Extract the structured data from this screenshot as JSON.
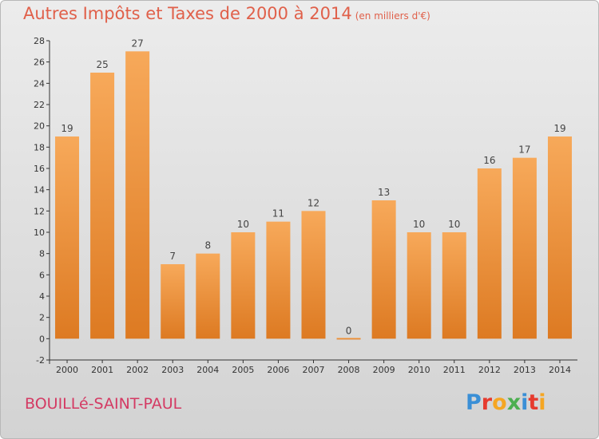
{
  "title": "Autres Impôts et Taxes de 2000 à 2014",
  "subtitle": "(en milliers d'€)",
  "commune": "BOUILLé-SAINT-PAUL",
  "logo": {
    "letters": [
      "P",
      "r",
      "o",
      "x",
      "i",
      "t",
      "i"
    ],
    "colors": [
      "#3a8fd6",
      "#e63b2e",
      "#f5a623",
      "#4caf50",
      "#3a8fd6",
      "#e63b2e",
      "#f5a623"
    ]
  },
  "colors": {
    "bar_light": "#f7a95a",
    "bar_dark": "#dd7a22",
    "title": "#e0604a",
    "commune": "#d43a63"
  },
  "chart_data": {
    "type": "bar",
    "categories": [
      "2000",
      "2001",
      "2002",
      "2003",
      "2004",
      "2005",
      "2006",
      "2007",
      "2008",
      "2009",
      "2010",
      "2011",
      "2012",
      "2013",
      "2014"
    ],
    "values": [
      19,
      25,
      27,
      7,
      8,
      10,
      11,
      12,
      0,
      13,
      10,
      10,
      16,
      17,
      19
    ],
    "ylim": [
      -2,
      28
    ],
    "yticks": [
      "-2",
      "0",
      "2",
      "4",
      "6",
      "8",
      "10",
      "12",
      "14",
      "16",
      "18",
      "20",
      "22",
      "24",
      "26",
      "28"
    ],
    "grid": "none",
    "legend": "none"
  }
}
